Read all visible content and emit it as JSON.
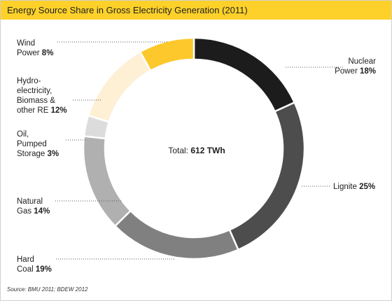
{
  "header": {
    "title": "Energy Source Share in Gross Electricity Generation (2011)"
  },
  "total": {
    "label": "Total:",
    "value": "612 TWh"
  },
  "source": "Source: BMU 2011; BDEW 2012",
  "colors": {
    "header": "#fdd12a"
  },
  "chart_data": {
    "type": "pie",
    "donut": true,
    "title": "Energy Source Share in Gross Electricity Generation (2011)",
    "unit": "%",
    "slices": [
      {
        "name": "Nuclear Power",
        "line1": "Nuclear",
        "line2": "Power",
        "lines": [
          "Nuclear"
        ],
        "last": "Power",
        "pct": "18%",
        "value": 18,
        "color": "#1c1c1c"
      },
      {
        "name": "Lignite",
        "lines": [],
        "last": "Lignite",
        "pct": "25%",
        "value": 25,
        "color": "#4d4d4d"
      },
      {
        "name": "Hard Coal",
        "lines": [
          "Hard"
        ],
        "last": "Coal",
        "pct": "19%",
        "value": 19,
        "color": "#808080"
      },
      {
        "name": "Natural Gas",
        "lines": [
          "Natural"
        ],
        "last": "Gas",
        "pct": "14%",
        "value": 14,
        "color": "#b0b0b0"
      },
      {
        "name": "Oil, Pumped Storage",
        "lines": [
          "Oil,",
          "Pumped"
        ],
        "last": "Storage",
        "pct": "3%",
        "value": 3,
        "color": "#dcdcdc"
      },
      {
        "name": "Hydro-electricity, Biomass & other RE",
        "lines": [
          "Hydro-",
          "electricity,",
          "Biomass &"
        ],
        "last": "other RE",
        "pct": "12%",
        "value": 12,
        "color": "#fdf0d5"
      },
      {
        "name": "Wind Power",
        "lines": [
          "Wind"
        ],
        "last": "Power",
        "pct": "8%",
        "value": 8,
        "color": "#fdc82c"
      }
    ]
  }
}
